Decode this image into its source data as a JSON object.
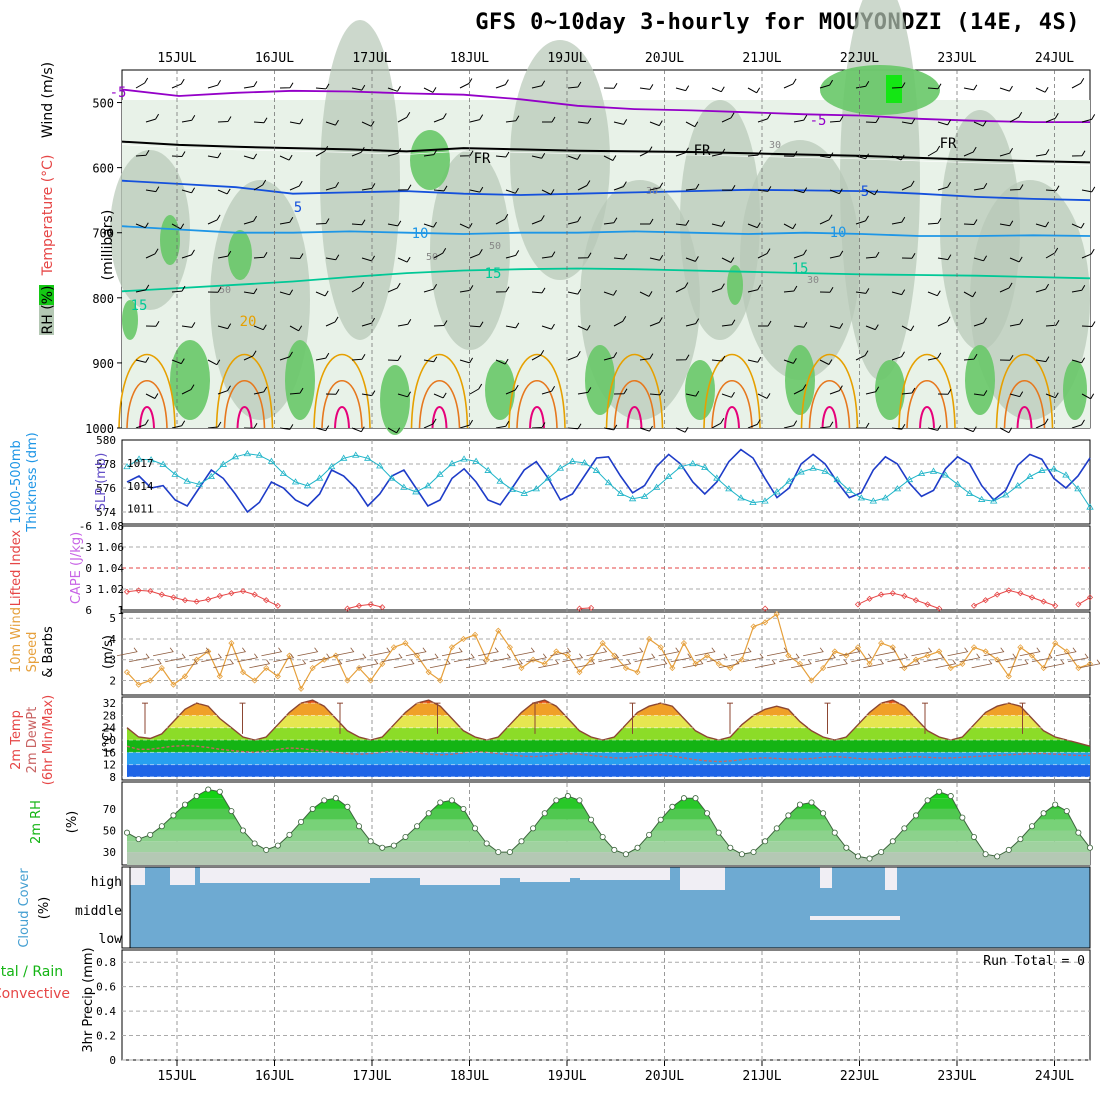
{
  "title": "GFS 0~10day 3-hourly for MOUYONDZI (14E, 4S)",
  "chart_data": {
    "type": "meteogram",
    "dates": [
      "15JUL",
      "16JUL",
      "17JUL",
      "18JUL",
      "19JUL",
      "20JUL",
      "21JUL",
      "22JUL",
      "23JUL",
      "24JUL"
    ],
    "panels": {
      "upper_air": {
        "ylabel": "(millibars)",
        "legend": [
          "RH (%)",
          "Temperature (°C)",
          "Wind (m/s)"
        ],
        "yticks": [
          500,
          600,
          700,
          800,
          900,
          1000
        ],
        "ylim": [
          450,
          1000
        ],
        "isotherms": [
          {
            "label": "-5",
            "color": "#9400c8",
            "p": [
              480,
              490,
              485,
              482,
              483,
              486,
              488,
              495,
              505,
              510,
              512,
              515,
              518,
              520,
              525,
              528,
              530,
              530
            ]
          },
          {
            "label": "FR",
            "color": "#000000",
            "p": [
              560,
              565,
              568,
              570,
              572,
              575,
              570,
              572,
              574,
              575,
              576,
              578,
              580,
              582,
              585,
              588,
              590,
              592
            ]
          },
          {
            "label": "5",
            "color": "#1450dc",
            "p": [
              620,
              625,
              630,
              640,
              638,
              636,
              640,
              642,
              640,
              638,
              636,
              634,
              635,
              636,
              640,
              645,
              648,
              650
            ]
          },
          {
            "label": "10",
            "color": "#1e96e6",
            "p": [
              690,
              695,
              700,
              700,
              698,
              700,
              702,
              700,
              700,
              698,
              700,
              702,
              700,
              702,
              705,
              705,
              704,
              705
            ]
          },
          {
            "label": "15",
            "color": "#00c896",
            "p": [
              790,
              785,
              780,
              775,
              768,
              762,
              758,
              756,
              755,
              756,
              758,
              760,
              762,
              764,
              765,
              766,
              768,
              770
            ]
          },
          {
            "label": "20",
            "color": "#e6a000",
            "p": [
              840
            ]
          },
          {
            "label": "50",
            "color": "#999999",
            "p": []
          },
          {
            "label": "30",
            "color": "#999999",
            "p": []
          }
        ]
      },
      "thickness_slp": {
        "ylabel_left": "1000-500mb Thickness (dm)",
        "ylabel_right": "SLP (mb)",
        "yticks_left": [
          574,
          576,
          578,
          580
        ],
        "yticks_right": [
          1011,
          1014,
          1017
        ],
        "thickness": [
          576.5,
          577.0,
          576.0,
          576.2,
          575.0,
          574.5,
          576.0,
          577.5,
          576.8,
          575.5,
          574.0,
          574.8,
          576.5,
          576.0,
          575.0,
          574.5,
          575.5,
          577.5,
          577.0,
          576.0,
          574.5,
          575.5,
          577.0,
          577.5,
          576.0,
          574.5,
          575.0,
          576.8,
          577.6,
          576.5,
          575.0,
          574.6,
          576.0,
          577.5,
          578.2,
          576.8,
          575.0,
          575.5,
          577.0,
          578.5,
          578.6,
          577.0,
          575.6,
          576.2,
          577.8,
          578.8,
          578.0,
          576.5,
          575.5,
          576.5,
          578.2,
          579.2,
          578.5,
          576.8,
          575.2,
          576.0,
          578.0,
          578.8,
          578.0,
          576.5,
          575.2,
          575.6,
          577.5,
          578.6,
          578.0,
          576.4,
          575.3,
          575.8,
          577.6,
          578.6,
          578.0,
          576.2,
          575.0,
          575.8,
          577.9,
          578.8,
          578.4,
          576.8,
          576.0,
          577.0,
          578.5
        ],
        "slp": [
          1016.5,
          1017.5,
          1017.4,
          1016.8,
          1015.5,
          1014.6,
          1014.2,
          1015.2,
          1016.8,
          1017.8,
          1018.2,
          1018.0,
          1017.2,
          1015.6,
          1014.5,
          1014.0,
          1015.0,
          1016.5,
          1017.6,
          1018.0,
          1017.6,
          1016.6,
          1015.0,
          1013.8,
          1013.2,
          1014.0,
          1015.5,
          1016.9,
          1017.5,
          1017.2,
          1016.0,
          1014.6,
          1013.5,
          1013.0,
          1013.6,
          1015.0,
          1016.3,
          1017.2,
          1017.0,
          1016.0,
          1014.4,
          1013.0,
          1012.3,
          1012.6,
          1013.8,
          1015.2,
          1016.5,
          1016.9,
          1016.4,
          1015.0,
          1013.6,
          1012.4,
          1011.8,
          1012.0,
          1013.2,
          1014.6,
          1015.8,
          1016.3,
          1015.9,
          1014.8,
          1013.4,
          1012.4,
          1012.0,
          1012.4,
          1013.6,
          1014.8,
          1015.6,
          1015.9,
          1015.4,
          1014.2,
          1013.0,
          1012.2,
          1012.0,
          1012.8,
          1014.0,
          1015.2,
          1016.0,
          1016.2,
          1015.4,
          1013.6,
          1011.2
        ]
      },
      "li_cape": {
        "ylabel_left": "Lifted Index",
        "ylabel_right": "CAPE (J/kg)",
        "yticks_left": [
          -6,
          -3,
          0,
          3,
          6
        ],
        "yticks_right": [
          1,
          1.02,
          1.04,
          1.06,
          1.08
        ],
        "li": [
          3.4,
          3.2,
          3.3,
          3.8,
          4.2,
          4.6,
          4.8,
          4.5,
          4.0,
          3.6,
          3.3,
          3.8,
          4.6,
          5.4,
          6.0,
          6.6,
          6.8,
          6.5,
          6.2,
          5.8,
          5.4,
          5.2,
          5.6,
          6.4,
          7.0,
          7.2,
          7.0,
          6.8,
          6.6,
          6.4,
          6.3,
          6.5,
          6.9,
          7.2,
          7.3,
          7.1,
          6.9,
          6.6,
          6.2,
          5.8,
          5.7,
          6.1,
          6.7,
          7.2,
          7.1,
          6.8,
          6.5,
          6.3,
          6.2,
          6.4,
          6.8,
          7.0,
          6.9,
          6.6,
          6.0,
          5.8,
          5.9,
          6.3,
          6.8,
          7.1,
          7.0,
          6.6,
          6.0,
          5.2,
          4.4,
          3.8,
          3.6,
          4.0,
          4.6,
          5.2,
          5.8,
          6.2,
          6.0,
          5.4,
          4.6,
          3.8,
          3.2,
          3.6,
          4.2,
          4.8,
          5.4,
          6.0,
          5.2,
          4.2
        ]
      },
      "wind10m": {
        "ylabel": "10m Wind Speed (m/s) & Barbs",
        "yticks": [
          2,
          3,
          4,
          5
        ],
        "speed": [
          2.4,
          1.8,
          2.0,
          2.6,
          1.8,
          2.2,
          3.0,
          3.4,
          2.2,
          3.8,
          2.4,
          2.0,
          2.6,
          2.2,
          3.2,
          1.6,
          2.6,
          3.0,
          3.2,
          2.0,
          2.6,
          2.0,
          2.8,
          3.6,
          3.8,
          3.2,
          2.4,
          2.0,
          3.6,
          4.0,
          4.2,
          3.0,
          4.4,
          3.6,
          2.6,
          3.0,
          2.8,
          3.4,
          3.2,
          2.4,
          3.0,
          3.8,
          3.2,
          2.6,
          2.4,
          4.0,
          3.6,
          2.6,
          3.8,
          2.8,
          3.2,
          2.8,
          2.6,
          3.0,
          4.6,
          4.8,
          5.2,
          3.2,
          2.8,
          2.0,
          2.6,
          3.4,
          3.2,
          3.6,
          2.8,
          3.8,
          3.6,
          2.6,
          3.0,
          3.2,
          3.4,
          2.6,
          2.8,
          3.6,
          3.4,
          3.0,
          2.2,
          3.6,
          3.2,
          2.6,
          3.8,
          3.4,
          2.6,
          2.8
        ]
      },
      "temp2m": {
        "ylabel": "2m Temp 2m DewPt (6hr Min/Max) (°C)",
        "yticks": [
          8,
          12,
          16,
          20,
          24,
          28,
          32
        ],
        "temp": [
          24,
          21,
          20.5,
          22,
          26,
          30,
          32,
          31,
          27,
          24,
          21,
          20,
          21,
          25,
          29,
          32,
          33,
          31,
          27,
          23,
          21,
          20,
          21,
          25,
          29,
          32,
          33,
          31,
          27,
          23,
          21,
          20,
          21,
          25,
          29,
          32,
          33,
          31,
          27,
          23,
          21,
          20,
          21,
          25,
          29,
          31,
          32,
          31,
          27,
          23,
          21,
          20,
          21,
          25,
          28,
          30,
          31,
          30,
          26,
          23,
          21,
          20,
          21,
          25,
          29,
          32,
          33,
          31,
          27,
          23,
          21,
          20,
          21,
          25,
          29,
          31,
          32,
          31,
          27,
          23,
          21,
          20,
          19,
          18
        ],
        "dewpt": [
          18,
          17,
          17,
          17.5,
          18,
          18.2,
          18,
          17.6,
          17,
          16.6,
          16.2,
          16,
          16.4,
          17,
          17.4,
          17.2,
          16.8,
          16.4,
          16,
          15.6,
          15.4,
          15.6,
          16,
          16.4,
          16.2,
          15.8,
          15.4,
          15.2,
          15.4,
          15.8,
          16.2,
          16,
          15.6,
          15.2,
          14.8,
          14.6,
          14.8,
          15.2,
          15.6,
          15.4,
          15,
          14.6,
          14.2,
          14.2,
          14.6,
          15,
          15.2,
          14.8,
          14.2,
          13.6,
          13.2,
          13,
          13.2,
          13.6,
          14,
          14.2,
          14,
          13.8,
          13.8,
          14,
          14.4,
          14.6,
          14.4,
          14,
          13.8,
          13.8,
          14,
          14.4,
          14.6,
          14.4,
          14.2,
          14.2,
          14.4,
          14.6,
          14.8,
          15,
          15.2,
          15.4,
          15.6,
          15.6,
          15.4,
          15.2,
          15,
          15
        ]
      },
      "rh2m": {
        "ylabel": "2m RH (%)",
        "yticks": [
          30,
          50,
          70
        ],
        "rh": [
          48,
          42,
          46,
          54,
          64,
          74,
          82,
          88,
          86,
          68,
          50,
          38,
          32,
          36,
          46,
          58,
          70,
          78,
          80,
          72,
          54,
          40,
          34,
          36,
          44,
          54,
          66,
          76,
          78,
          70,
          52,
          38,
          30,
          30,
          40,
          52,
          66,
          78,
          82,
          78,
          60,
          44,
          32,
          28,
          34,
          46,
          60,
          72,
          80,
          80,
          66,
          48,
          34,
          28,
          30,
          40,
          52,
          64,
          74,
          76,
          66,
          48,
          34,
          26,
          24,
          30,
          40,
          52,
          64,
          78,
          86,
          82,
          62,
          44,
          28,
          26,
          32,
          42,
          54,
          66,
          74,
          68,
          48,
          34
        ],
        "rh_tail": [
          30,
          32,
          40,
          52,
          64,
          72,
          70,
          52,
          36,
          34,
          44,
          56,
          68,
          78,
          84
        ]
      },
      "cloud": {
        "ylabel": "Cloud Cover (%)",
        "levels": [
          "high",
          "middle",
          "low"
        ]
      },
      "precip": {
        "ylabel": "3hr Precip (mm)",
        "legend": [
          "Total / Rain",
          "Convective"
        ],
        "yticks": [
          0,
          0.2,
          0.4,
          0.6,
          0.8
        ],
        "run_total": "Run Total = 0",
        "values": []
      }
    }
  }
}
